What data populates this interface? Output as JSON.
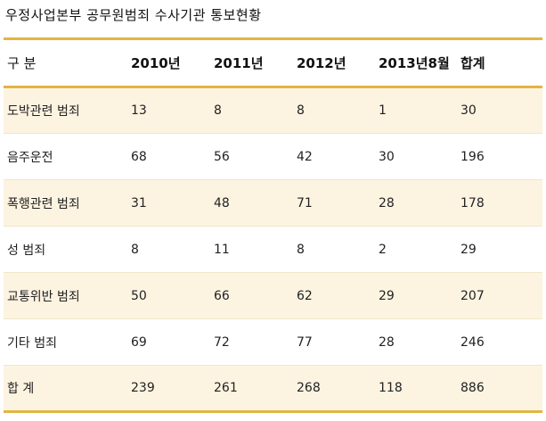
{
  "page": {
    "title": "우정사업본부 공무원범죄 수사기관 통보현황"
  },
  "table": {
    "headers": [
      "구 분",
      "2010년",
      "2011년",
      "2012년",
      "2013년8월",
      "합계"
    ],
    "rows": [
      [
        "도박관련 범죄",
        "13",
        "8",
        "8",
        "1",
        "30"
      ],
      [
        "음주운전",
        "68",
        "56",
        "42",
        "30",
        "196"
      ],
      [
        "폭행관련 범죄",
        "31",
        "48",
        "71",
        "28",
        "178"
      ],
      [
        "성 범죄",
        "8",
        "11",
        "8",
        "2",
        "29"
      ],
      [
        "교통위반 범죄",
        "50",
        "66",
        "62",
        "29",
        "207"
      ],
      [
        "기타 범죄",
        "69",
        "72",
        "77",
        "28",
        "246"
      ],
      [
        "합 계",
        "239",
        "261",
        "268",
        "118",
        "886"
      ]
    ]
  },
  "colors": {
    "rule": "#e2b443",
    "stripe": "#fdf3e1"
  }
}
